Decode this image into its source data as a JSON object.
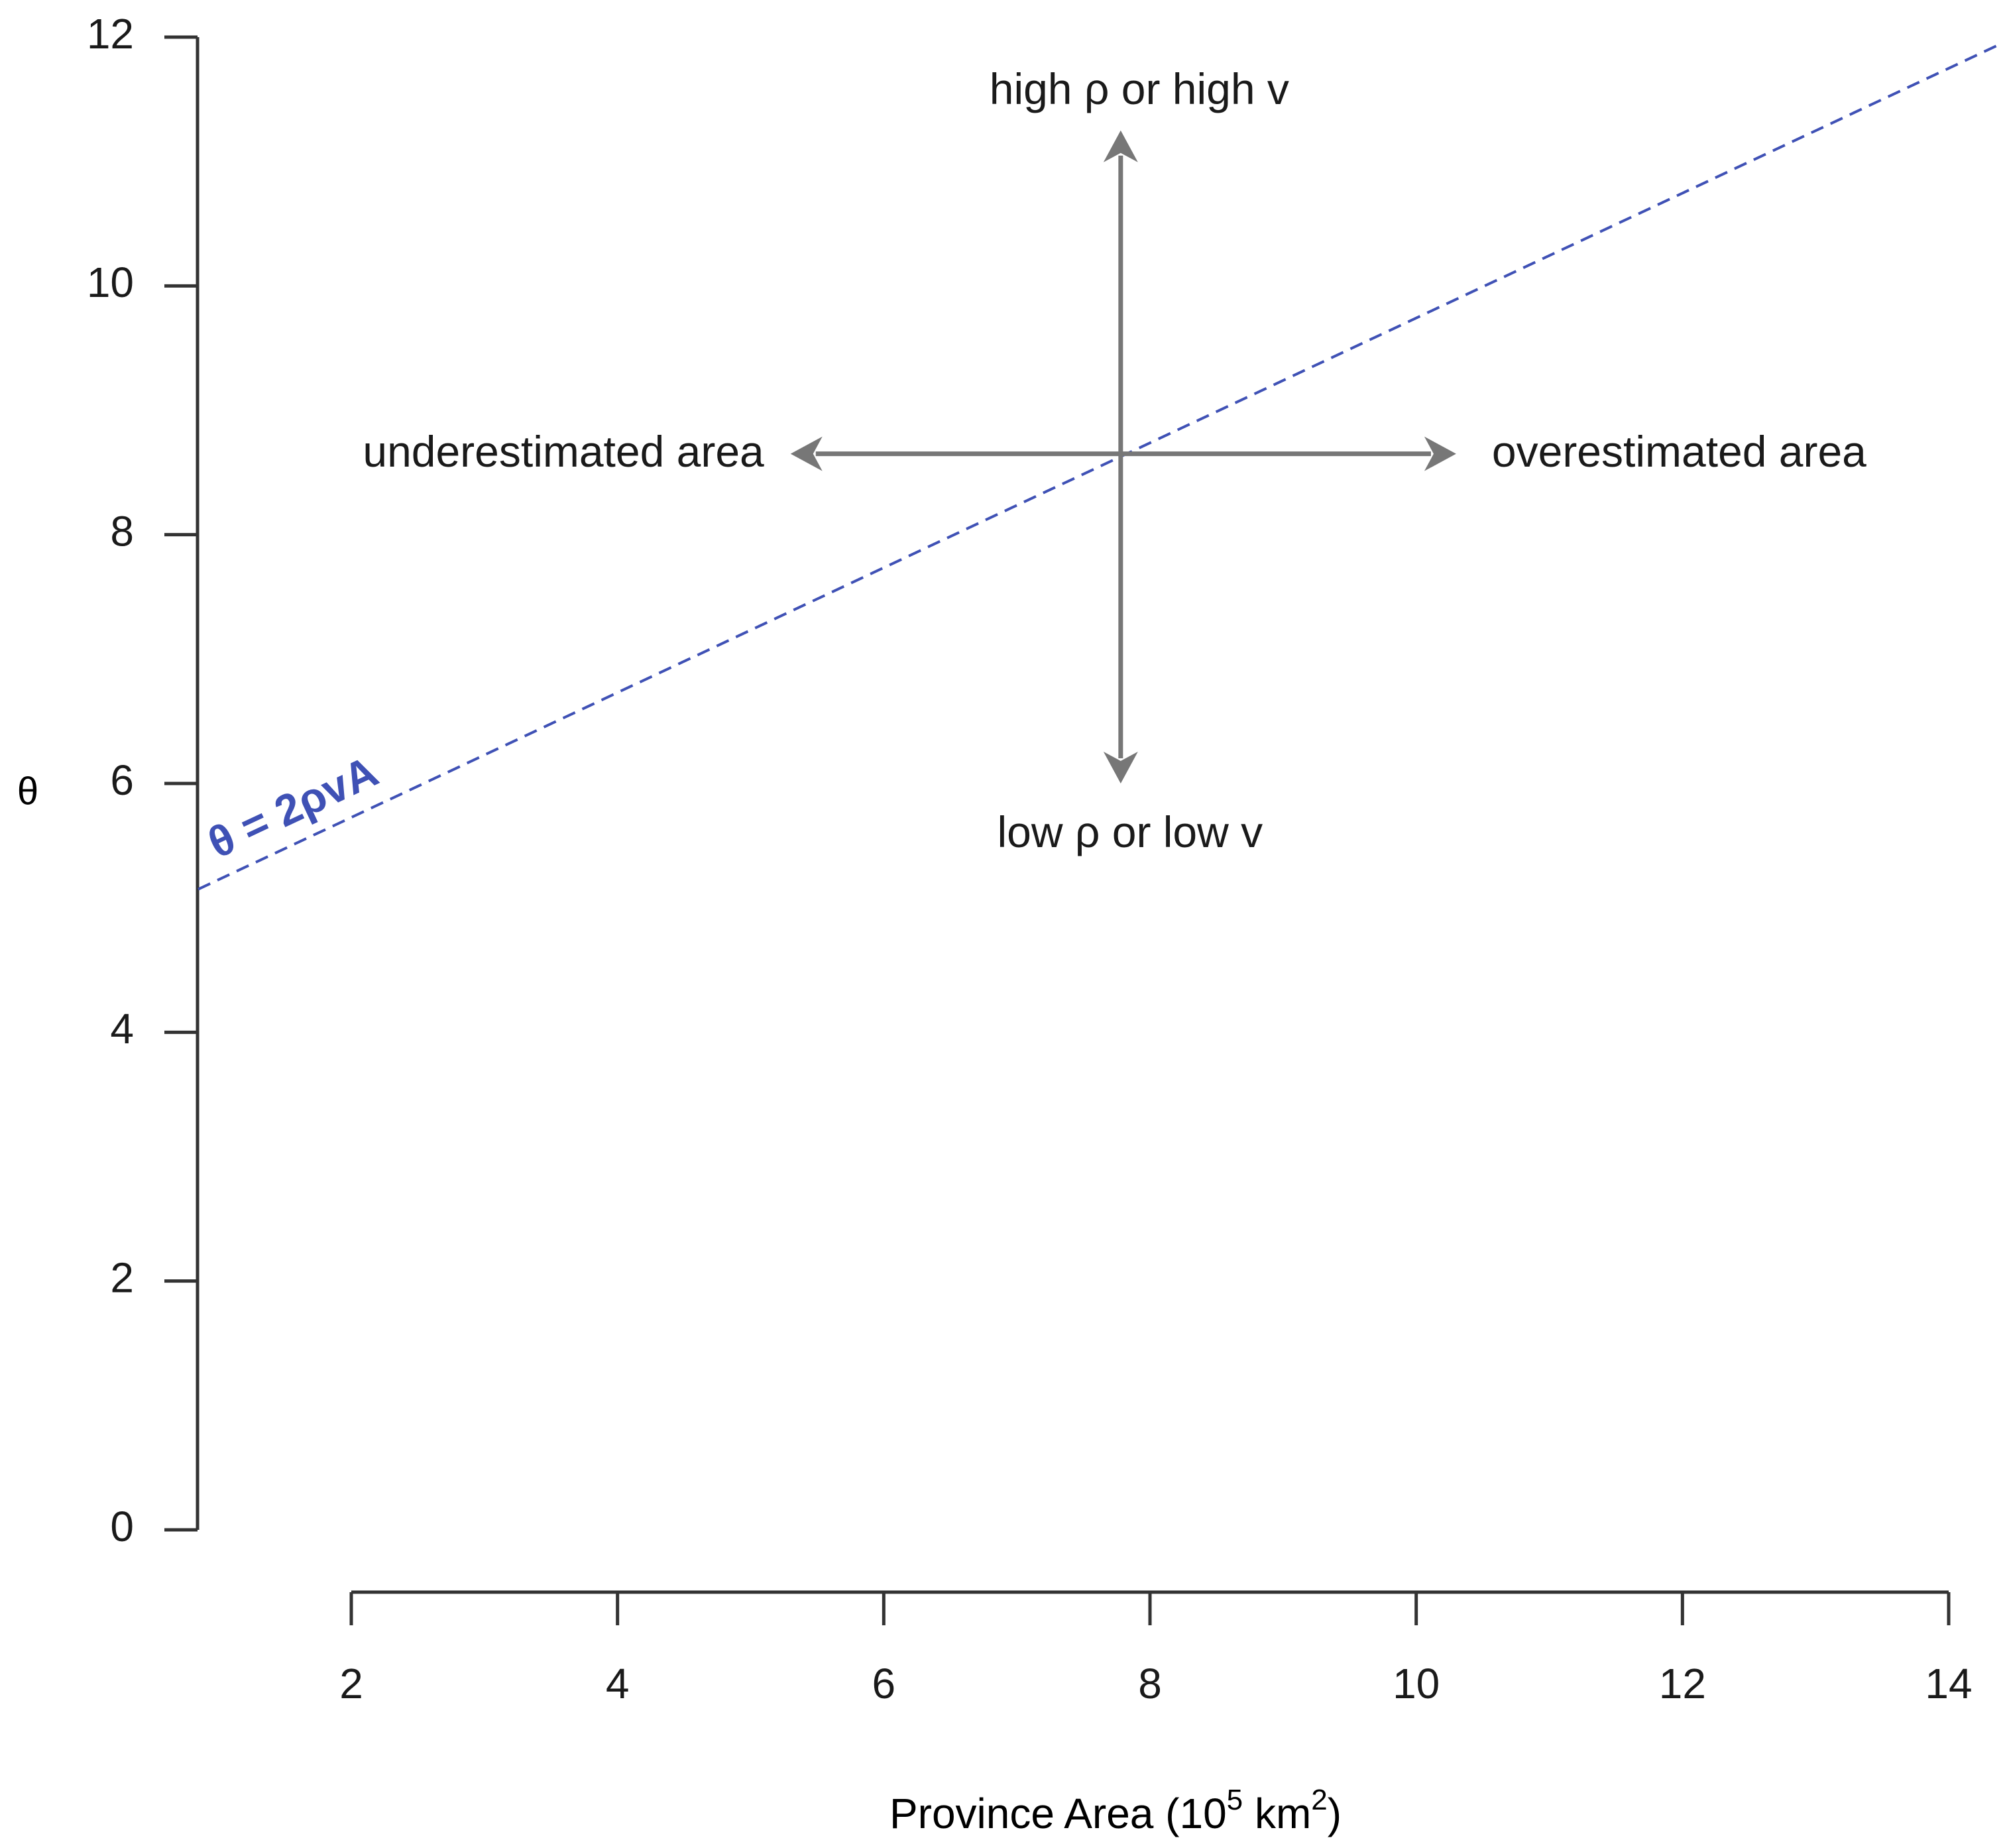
{
  "chart_data": {
    "type": "line",
    "title": "",
    "xlabel": "Province Area (10",
    "xlabel_exponent": "5",
    "xlabel_unit": " km",
    "xlabel_unit_exponent": "2",
    "xlabel_close": ")",
    "ylabel": "θ",
    "xlim": [
      0.85,
      14.4
    ],
    "ylim": [
      0,
      12
    ],
    "x_axis_range": [
      2,
      14
    ],
    "y_axis_range": [
      0,
      12
    ],
    "x_ticks": [
      2,
      4,
      6,
      8,
      10,
      12,
      14
    ],
    "y_ticks": [
      0,
      2,
      4,
      6,
      8,
      10,
      12
    ],
    "grid": false,
    "series": [
      {
        "name": "θ = 2ρvA",
        "style": "dashed",
        "color": "#3f51b5",
        "x": [
          0.85,
          14.4
        ],
        "y": [
          5.15,
          11.95
        ]
      }
    ],
    "center_point": {
      "x": 7.78,
      "y": 8.65
    },
    "arrows": [
      {
        "direction": "up",
        "label": "high ρ or high v",
        "end": {
          "x": 7.78,
          "y": 11.25
        }
      },
      {
        "direction": "down",
        "label": "low ρ or low v",
        "end": {
          "x": 7.78,
          "y": 6.0
        }
      },
      {
        "direction": "left",
        "label": "underestimated area",
        "end": {
          "x": 5.3,
          "y": 8.65
        }
      },
      {
        "direction": "right",
        "label": "overestimated area",
        "end": {
          "x": 10.3,
          "y": 8.65
        }
      }
    ],
    "arrow_color": "#777777",
    "text_color": "#1a1a1a",
    "axis_color": "#333333"
  }
}
